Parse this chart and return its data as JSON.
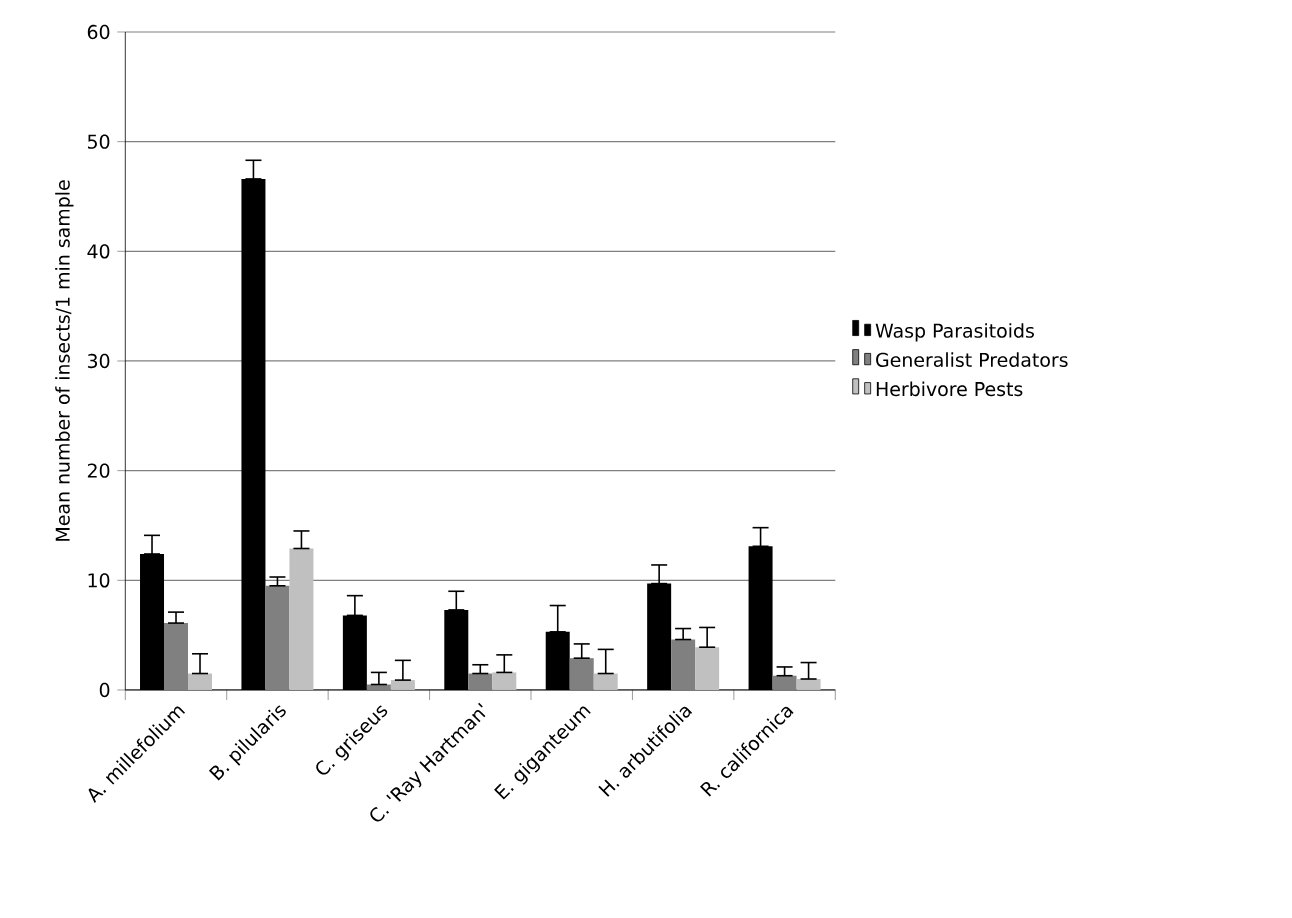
{
  "chart_data": {
    "type": "bar",
    "ylabel": "Mean number of insects/1 min sample",
    "categories": [
      "A. millefolium",
      "B. pilularis",
      "C. griseus",
      "C. 'Ray Hartman'",
      "E. giganteum",
      "H. arbutifolia",
      "R. californica"
    ],
    "series": [
      {
        "name": "Wasp Parasitoids",
        "color": "#000000",
        "values": [
          12.4,
          46.6,
          6.8,
          7.3,
          5.3,
          9.7,
          13.1
        ],
        "errors": [
          [
            12.4,
            14.1
          ],
          [
            46.6,
            48.3
          ],
          [
            6.8,
            8.6
          ],
          [
            7.3,
            9.0
          ],
          [
            5.3,
            7.7
          ],
          [
            9.7,
            11.4
          ],
          [
            13.1,
            14.8
          ]
        ]
      },
      {
        "name": "Generalist Predators",
        "color": "#808080",
        "values": [
          6.1,
          9.5,
          0.5,
          1.5,
          2.9,
          4.6,
          1.3
        ],
        "errors": [
          [
            6.1,
            7.1
          ],
          [
            9.5,
            10.3
          ],
          [
            0.5,
            1.6
          ],
          [
            1.5,
            2.3
          ],
          [
            2.9,
            4.2
          ],
          [
            4.6,
            5.6
          ],
          [
            1.3,
            2.1
          ]
        ]
      },
      {
        "name": "Herbivore Pests",
        "color": "#c0c0c0",
        "values": [
          1.5,
          12.9,
          0.9,
          1.6,
          1.5,
          3.9,
          1.0
        ],
        "errors": [
          [
            1.5,
            3.3
          ],
          [
            12.9,
            14.5
          ],
          [
            0.9,
            2.7
          ],
          [
            1.6,
            3.2
          ],
          [
            1.5,
            3.7
          ],
          [
            3.9,
            5.7
          ],
          [
            1.0,
            2.5
          ]
        ]
      }
    ],
    "ylim": [
      0,
      60
    ],
    "yticks": [
      0,
      10,
      20,
      30,
      40,
      50,
      60
    ],
    "grid": "y",
    "legend": "right"
  }
}
